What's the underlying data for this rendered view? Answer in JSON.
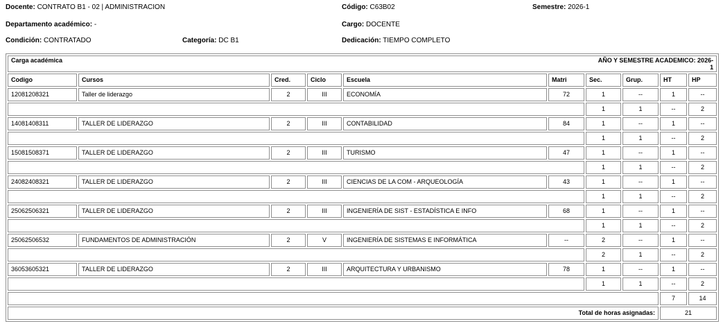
{
  "info": {
    "docente_label": "Docente:",
    "docente_value": "CONTRATO B1 - 02 | ADMINISTRACION",
    "codigo_label": "Código:",
    "codigo_value": "C63B02",
    "semestre_label": "Semestre:",
    "semestre_value": "2026-1",
    "departamento_label": "Departamento académico:",
    "departamento_value": "-",
    "cargo_label": "Cargo:",
    "cargo_value": "DOCENTE",
    "condicion_label": "Condición:",
    "condicion_value": "CONTRATADO",
    "categoria_label": "Categoría:",
    "categoria_value": "DC B1",
    "dedicacion_label": "Dedicación:",
    "dedicacion_value": "TIEMPO COMPLETO"
  },
  "table": {
    "title": "Carga académica",
    "year_semester_line1": "AÑO Y SEMESTRE ACADEMICO: 2026-",
    "year_semester_line2": "1",
    "columns": [
      "Codigo",
      "Cursos",
      "Cred.",
      "Ciclo",
      "Escuela",
      "Matri",
      "Sec.",
      "Grup.",
      "HT",
      "HP"
    ],
    "courses": [
      {
        "codigo": "12081208321",
        "curso": "Taller de liderazgo",
        "cred": "2",
        "ciclo": "III",
        "escuela": "ECONOMÍA",
        "matri": "72",
        "teoria": {
          "sec": "1",
          "grup": "--",
          "ht": "1",
          "hp": "--"
        },
        "practica": {
          "sec": "1",
          "grup": "1",
          "ht": "--",
          "hp": "2"
        }
      },
      {
        "codigo": "14081408311",
        "curso": "TALLER DE LIDERAZGO",
        "cred": "2",
        "ciclo": "III",
        "escuela": "CONTABILIDAD",
        "matri": "84",
        "teoria": {
          "sec": "1",
          "grup": "--",
          "ht": "1",
          "hp": "--"
        },
        "practica": {
          "sec": "1",
          "grup": "1",
          "ht": "--",
          "hp": "2"
        }
      },
      {
        "codigo": "15081508371",
        "curso": "TALLER DE LIDERAZGO",
        "cred": "2",
        "ciclo": "III",
        "escuela": "TURISMO",
        "matri": "47",
        "teoria": {
          "sec": "1",
          "grup": "--",
          "ht": "1",
          "hp": "--"
        },
        "practica": {
          "sec": "1",
          "grup": "1",
          "ht": "--",
          "hp": "2"
        }
      },
      {
        "codigo": "24082408321",
        "curso": "TALLER DE LIDERAZGO",
        "cred": "2",
        "ciclo": "III",
        "escuela": "CIENCIAS DE LA COM - ARQUEOLOGÍA",
        "matri": "43",
        "teoria": {
          "sec": "1",
          "grup": "--",
          "ht": "1",
          "hp": "--"
        },
        "practica": {
          "sec": "1",
          "grup": "1",
          "ht": "--",
          "hp": "2"
        }
      },
      {
        "codigo": "25062506321",
        "curso": "TALLER DE LIDERAZGO",
        "cred": "2",
        "ciclo": "III",
        "escuela": "INGENIERÍA DE SIST - ESTADÍSTICA E INFO",
        "matri": "68",
        "teoria": {
          "sec": "1",
          "grup": "--",
          "ht": "1",
          "hp": "--"
        },
        "practica": {
          "sec": "1",
          "grup": "1",
          "ht": "--",
          "hp": "2"
        }
      },
      {
        "codigo": "25062506532",
        "curso": "FUNDAMENTOS DE ADMINISTRACIÓN",
        "cred": "2",
        "ciclo": "V",
        "escuela": "INGENIERÍA DE SISTEMAS E INFORMÁTICA",
        "matri": "--",
        "teoria": {
          "sec": "2",
          "grup": "--",
          "ht": "1",
          "hp": "--"
        },
        "practica": {
          "sec": "2",
          "grup": "1",
          "ht": "--",
          "hp": "2"
        }
      },
      {
        "codigo": "36053605321",
        "curso": "TALLER DE LIDERAZGO",
        "cred": "2",
        "ciclo": "III",
        "escuela": "ARQUITECTURA Y URBANISMO",
        "matri": "78",
        "teoria": {
          "sec": "1",
          "grup": "--",
          "ht": "1",
          "hp": "--"
        },
        "practica": {
          "sec": "1",
          "grup": "1",
          "ht": "--",
          "hp": "2"
        }
      }
    ],
    "totals_ht": "7",
    "totals_hp": "14",
    "total_label": "Total de horas asignadas:",
    "total_value": "21"
  },
  "colors": {
    "border": "#8f8f8f",
    "text": "#000000",
    "background": "#ffffff"
  }
}
